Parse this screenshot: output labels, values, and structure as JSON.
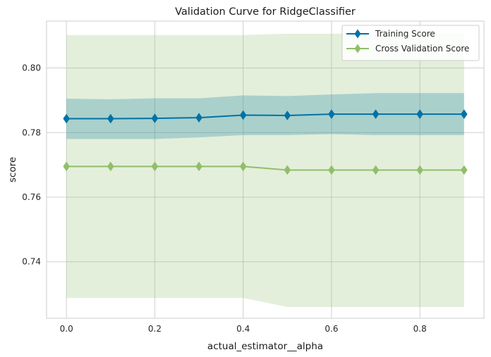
{
  "chart_data": {
    "type": "line",
    "title": "Validation Curve for RidgeClassifier",
    "xlabel": "actual_estimator__alpha",
    "ylabel": "score",
    "xlim": [
      -0.045,
      0.945
    ],
    "ylim": [
      0.7225,
      0.8145
    ],
    "x": [
      0.0,
      0.1,
      0.2,
      0.3,
      0.4,
      0.5,
      0.6,
      0.7,
      0.8,
      0.9
    ],
    "xticks": [
      0.0,
      0.2,
      0.4,
      0.6,
      0.8
    ],
    "xtick_labels": [
      "0.0",
      "0.2",
      "0.4",
      "0.6",
      "0.8"
    ],
    "yticks": [
      0.74,
      0.76,
      0.78,
      0.8
    ],
    "ytick_labels": [
      "0.74",
      "0.76",
      "0.78",
      "0.80"
    ],
    "grid": true,
    "legend_position": "top-right",
    "series": [
      {
        "name": "Training Score",
        "color": "#0072a4",
        "marker": "diamond",
        "values": [
          0.7843,
          0.7843,
          0.7844,
          0.7846,
          0.7854,
          0.7853,
          0.7857,
          0.7857,
          0.7857,
          0.7857
        ],
        "band_lower": [
          0.778,
          0.778,
          0.778,
          0.7785,
          0.7792,
          0.7792,
          0.7795,
          0.7792,
          0.7792,
          0.7792
        ],
        "band_upper": [
          0.7905,
          0.7903,
          0.7906,
          0.7906,
          0.7915,
          0.7913,
          0.7918,
          0.7922,
          0.7922,
          0.7922
        ]
      },
      {
        "name": "Cross Validation Score",
        "color": "#91be6b",
        "marker": "diamond",
        "values": [
          0.7695,
          0.7695,
          0.7695,
          0.7695,
          0.7695,
          0.7684,
          0.7684,
          0.7684,
          0.7684,
          0.7684
        ],
        "band_lower": [
          0.7288,
          0.7288,
          0.7288,
          0.7288,
          0.7288,
          0.726,
          0.726,
          0.726,
          0.726,
          0.726
        ],
        "band_upper": [
          0.8102,
          0.8102,
          0.8102,
          0.8102,
          0.8102,
          0.8106,
          0.8106,
          0.8106,
          0.8106,
          0.8106
        ]
      }
    ]
  }
}
